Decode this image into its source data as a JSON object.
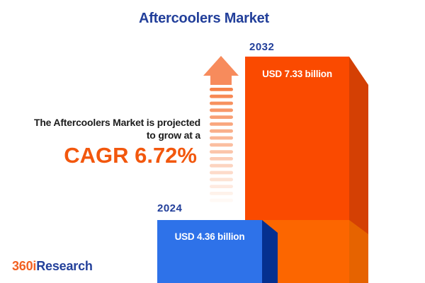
{
  "header": {
    "title": "Aftercoolers Market"
  },
  "projection": {
    "line1": "The Aftercoolers Market is projected",
    "line2": "to grow at a",
    "cagr": "CAGR 6.72%"
  },
  "chart_data": {
    "type": "bar",
    "title": "Aftercoolers Market",
    "unit": "USD billion",
    "categories": [
      "2024",
      "2032"
    ],
    "values": [
      4.36,
      7.33
    ],
    "cagr_percent": "6.72%",
    "bars": [
      {
        "year": "2024",
        "value": 4.36,
        "label": "USD 4.36 billion",
        "color": "#2E72E9",
        "side_color": "#05308F"
      },
      {
        "year": "2032",
        "value": 7.33,
        "label": "USD 7.33 billion",
        "color": "#FA4A00",
        "color_lower": "#FC6600",
        "side_color": "#D44004",
        "side_color_lower": "#E66300"
      }
    ],
    "legend": "none",
    "axes_visible": false
  },
  "arrow": {
    "head_color": "#F78B5C",
    "dash_count": 17,
    "dash_color_start": "#F6824A",
    "dash_color_end": "#FFF9F5"
  },
  "branding": {
    "prefix": "360i",
    "suffix": "Research",
    "prefix_color": "#F26122",
    "suffix_color": "#24419B"
  },
  "colors": {
    "background": "#FFFFFF",
    "title_blue": "#223F9A",
    "text_dark": "#1C1C1C",
    "accent_orange": "#F2570D"
  }
}
